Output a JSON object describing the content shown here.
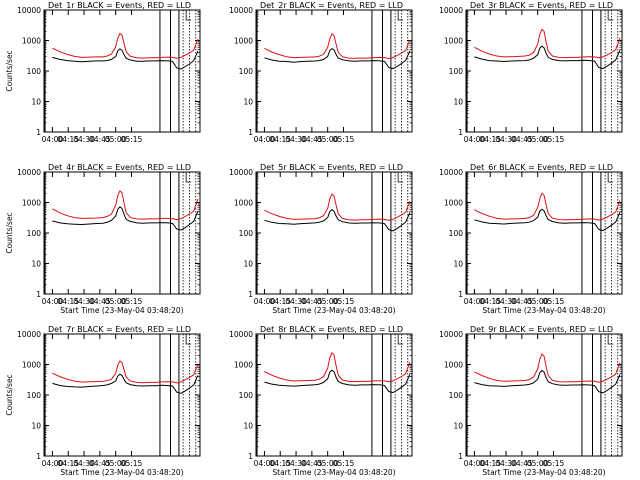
{
  "chart_data": [
    {
      "type": "line",
      "title": "Det_1r BLACK = Events, RED = LLD",
      "xlabel": "",
      "ylabel": "Counts/sec",
      "x_ticks": [
        "04:00",
        "04:15",
        "04:30",
        "04:45",
        "05:00",
        "05:15"
      ],
      "y_ticks": [
        "1",
        "10",
        "100",
        "1000",
        "10000"
      ],
      "ylog": true,
      "ylim": [
        1,
        10000
      ],
      "x_minutes": [
        0,
        7,
        14,
        21,
        28,
        35,
        42,
        48,
        52,
        56,
        60,
        62,
        64,
        66,
        68,
        70,
        74,
        80,
        86,
        92,
        98,
        104,
        110,
        114,
        118,
        122,
        126,
        130,
        134,
        138
      ],
      "series": [
        {
          "name": "Events",
          "color": "#000000",
          "values": [
            280,
            240,
            220,
            210,
            200,
            210,
            215,
            215,
            220,
            240,
            300,
            460,
            530,
            480,
            340,
            260,
            230,
            210,
            210,
            215,
            215,
            220,
            215,
            205,
            125,
            115,
            140,
            170,
            220,
            450
          ]
        },
        {
          "name": "LLD",
          "color": "#dd1111",
          "values": [
            560,
            430,
            350,
            300,
            280,
            285,
            290,
            290,
            310,
            360,
            620,
            1200,
            1700,
            1500,
            780,
            420,
            300,
            270,
            265,
            270,
            270,
            280,
            285,
            280,
            260,
            280,
            330,
            390,
            480,
            1100
          ]
        }
      ]
    },
    {
      "type": "line",
      "title": "Det_2r BLACK = Events, RED = LLD",
      "xlabel": "",
      "ylabel": "",
      "x_ticks": [
        "04:00",
        "04:15",
        "04:30",
        "04:45",
        "05:00",
        "05:15"
      ],
      "y_ticks": [
        "1",
        "10",
        "100",
        "1000",
        "10000"
      ],
      "ylog": true,
      "ylim": [
        1,
        10000
      ],
      "x_minutes": [
        0,
        7,
        14,
        21,
        28,
        35,
        42,
        48,
        52,
        56,
        60,
        62,
        64,
        66,
        68,
        70,
        74,
        80,
        86,
        92,
        98,
        104,
        110,
        114,
        118,
        122,
        126,
        130,
        134,
        138
      ],
      "series": [
        {
          "name": "Events",
          "color": "#000000",
          "values": [
            270,
            230,
            210,
            205,
            195,
            205,
            210,
            212,
            220,
            240,
            300,
            470,
            540,
            500,
            350,
            265,
            235,
            215,
            210,
            215,
            215,
            220,
            215,
            205,
            130,
            120,
            140,
            175,
            225,
            460
          ]
        },
        {
          "name": "LLD",
          "color": "#dd1111",
          "values": [
            550,
            420,
            345,
            295,
            275,
            280,
            285,
            290,
            305,
            350,
            600,
            1150,
            1650,
            1450,
            760,
            410,
            295,
            265,
            260,
            265,
            265,
            275,
            280,
            275,
            255,
            275,
            325,
            385,
            470,
            1050
          ]
        }
      ]
    },
    {
      "type": "line",
      "title": "Det_3r BLACK = Events, RED = LLD",
      "xlabel": "",
      "ylabel": "",
      "x_ticks": [
        "04:00",
        "04:15",
        "04:30",
        "04:45",
        "05:00",
        "05:15"
      ],
      "y_ticks": [
        "1",
        "10",
        "100",
        "1000",
        "10000"
      ],
      "ylog": true,
      "ylim": [
        1,
        10000
      ],
      "x_minutes": [
        0,
        7,
        14,
        21,
        28,
        35,
        42,
        48,
        52,
        56,
        60,
        62,
        64,
        66,
        68,
        70,
        74,
        80,
        86,
        92,
        98,
        104,
        110,
        114,
        118,
        122,
        126,
        130,
        134,
        138
      ],
      "series": [
        {
          "name": "Events",
          "color": "#000000",
          "values": [
            290,
            245,
            220,
            212,
            205,
            212,
            218,
            220,
            230,
            260,
            340,
            560,
            650,
            580,
            380,
            280,
            240,
            220,
            215,
            220,
            220,
            225,
            220,
            210,
            130,
            120,
            145,
            180,
            230,
            480
          ]
        },
        {
          "name": "LLD",
          "color": "#dd1111",
          "values": [
            600,
            450,
            360,
            310,
            290,
            295,
            300,
            310,
            330,
            400,
            760,
            1600,
            2300,
            2000,
            900,
            450,
            310,
            280,
            275,
            280,
            280,
            290,
            295,
            290,
            270,
            290,
            340,
            400,
            500,
            1200
          ]
        }
      ]
    },
    {
      "type": "line",
      "title": "Det_4r BLACK = Events, RED = LLD",
      "xlabel": "Start Time (23-May-04 03:48:20)",
      "ylabel": "Counts/sec",
      "x_ticks": [
        "04:00",
        "04:15",
        "04:30",
        "04:45",
        "05:00",
        "05:15"
      ],
      "y_ticks": [
        "1",
        "10",
        "100",
        "1000",
        "10000"
      ],
      "ylog": true,
      "ylim": [
        1,
        10000
      ],
      "x_minutes": [
        0,
        7,
        14,
        21,
        28,
        35,
        42,
        48,
        52,
        56,
        60,
        62,
        64,
        66,
        68,
        70,
        74,
        80,
        86,
        92,
        98,
        104,
        110,
        114,
        118,
        122,
        126,
        130,
        134,
        138
      ],
      "series": [
        {
          "name": "Events",
          "color": "#000000",
          "values": [
            250,
            215,
            200,
            195,
            190,
            198,
            205,
            210,
            225,
            260,
            360,
            600,
            720,
            640,
            400,
            280,
            240,
            215,
            210,
            215,
            215,
            220,
            215,
            205,
            135,
            125,
            150,
            190,
            240,
            520
          ]
        },
        {
          "name": "LLD",
          "color": "#dd1111",
          "values": [
            620,
            460,
            370,
            320,
            300,
            305,
            310,
            320,
            350,
            420,
            820,
            1700,
            2400,
            2100,
            950,
            460,
            320,
            290,
            285,
            290,
            290,
            300,
            300,
            295,
            275,
            295,
            350,
            420,
            520,
            1300
          ]
        }
      ]
    },
    {
      "type": "line",
      "title": "Det_5r BLACK = Events, RED = LLD",
      "xlabel": "Start Time (23-May-04 03:48:20)",
      "ylabel": "",
      "x_ticks": [
        "04:00",
        "04:15",
        "04:30",
        "04:45",
        "05:00",
        "05:15"
      ],
      "y_ticks": [
        "1",
        "10",
        "100",
        "1000",
        "10000"
      ],
      "ylog": true,
      "ylim": [
        1,
        10000
      ],
      "x_minutes": [
        0,
        7,
        14,
        21,
        28,
        35,
        42,
        48,
        52,
        56,
        60,
        62,
        64,
        66,
        68,
        70,
        74,
        80,
        86,
        92,
        98,
        104,
        110,
        114,
        118,
        122,
        126,
        130,
        134,
        138
      ],
      "series": [
        {
          "name": "Events",
          "color": "#000000",
          "values": [
            260,
            225,
            205,
            200,
            195,
            203,
            210,
            215,
            225,
            250,
            320,
            500,
            580,
            520,
            360,
            270,
            235,
            212,
            208,
            212,
            212,
            218,
            212,
            202,
            128,
            118,
            142,
            178,
            228,
            470
          ]
        },
        {
          "name": "LLD",
          "color": "#dd1111",
          "values": [
            560,
            430,
            350,
            300,
            280,
            285,
            290,
            295,
            315,
            370,
            650,
            1300,
            1900,
            1650,
            820,
            430,
            300,
            270,
            265,
            270,
            270,
            280,
            285,
            280,
            260,
            280,
            330,
            390,
            480,
            1100
          ]
        }
      ]
    },
    {
      "type": "line",
      "title": "Det_6r BLACK = Events, RED = LLD",
      "xlabel": "Start Time (23-May-04 03:48:20)",
      "ylabel": "",
      "x_ticks": [
        "04:00",
        "04:15",
        "04:30",
        "04:45",
        "05:00",
        "05:15"
      ],
      "y_ticks": [
        "1",
        "10",
        "100",
        "1000",
        "10000"
      ],
      "ylog": true,
      "ylim": [
        1,
        10000
      ],
      "x_minutes": [
        0,
        7,
        14,
        21,
        28,
        35,
        42,
        48,
        52,
        56,
        60,
        62,
        64,
        66,
        68,
        70,
        74,
        80,
        86,
        92,
        98,
        104,
        110,
        114,
        118,
        122,
        126,
        130,
        134,
        138
      ],
      "series": [
        {
          "name": "Events",
          "color": "#000000",
          "values": [
            270,
            232,
            210,
            204,
            198,
            206,
            212,
            216,
            226,
            255,
            330,
            520,
            600,
            540,
            370,
            275,
            238,
            215,
            210,
            215,
            215,
            220,
            215,
            205,
            130,
            120,
            145,
            180,
            230,
            480
          ]
        },
        {
          "name": "LLD",
          "color": "#dd1111",
          "values": [
            580,
            440,
            355,
            305,
            285,
            290,
            295,
            300,
            320,
            380,
            680,
            1350,
            2000,
            1750,
            840,
            440,
            305,
            275,
            270,
            275,
            275,
            285,
            290,
            285,
            265,
            285,
            335,
            395,
            490,
            1150
          ]
        }
      ]
    },
    {
      "type": "line",
      "title": "Det_7r BLACK = Events, RED = LLD",
      "xlabel": "Start Time (23-May-04 03:48:20)",
      "ylabel": "Counts/sec",
      "x_ticks": [
        "04:00",
        "04:15",
        "04:30",
        "04:45",
        "05:00",
        "05:15"
      ],
      "y_ticks": [
        "1",
        "10",
        "100",
        "1000",
        "10000"
      ],
      "ylog": true,
      "ylim": [
        1,
        10000
      ],
      "x_minutes": [
        0,
        7,
        14,
        21,
        28,
        35,
        42,
        48,
        52,
        56,
        60,
        62,
        64,
        66,
        68,
        70,
        74,
        80,
        86,
        92,
        98,
        104,
        110,
        114,
        118,
        122,
        126,
        130,
        134,
        138
      ],
      "series": [
        {
          "name": "Events",
          "color": "#000000",
          "values": [
            240,
            205,
            190,
            185,
            182,
            190,
            198,
            205,
            215,
            240,
            290,
            420,
            480,
            440,
            320,
            250,
            220,
            200,
            198,
            202,
            202,
            208,
            204,
            196,
            124,
            114,
            136,
            168,
            215,
            440
          ]
        },
        {
          "name": "LLD",
          "color": "#dd1111",
          "values": [
            520,
            400,
            330,
            285,
            265,
            270,
            275,
            280,
            295,
            330,
            520,
            950,
            1300,
            1150,
            680,
            390,
            285,
            258,
            252,
            258,
            258,
            268,
            272,
            268,
            250,
            268,
            318,
            372,
            460,
            1000
          ]
        }
      ]
    },
    {
      "type": "line",
      "title": "Det_8r BLACK = Events, RED = LLD",
      "xlabel": "Start Time (23-May-04 03:48:20)",
      "ylabel": "",
      "x_ticks": [
        "04:00",
        "04:15",
        "04:30",
        "04:45",
        "05:00",
        "05:15"
      ],
      "y_ticks": [
        "1",
        "10",
        "100",
        "1000",
        "10000"
      ],
      "ylog": true,
      "ylim": [
        1,
        10000
      ],
      "x_minutes": [
        0,
        7,
        14,
        21,
        28,
        35,
        42,
        48,
        52,
        56,
        60,
        62,
        64,
        66,
        68,
        70,
        74,
        80,
        86,
        92,
        98,
        104,
        110,
        114,
        118,
        122,
        126,
        130,
        134,
        138
      ],
      "series": [
        {
          "name": "Events",
          "color": "#000000",
          "values": [
            265,
            228,
            208,
            202,
            196,
            204,
            211,
            216,
            228,
            258,
            340,
            560,
            650,
            580,
            380,
            278,
            238,
            214,
            210,
            214,
            214,
            220,
            214,
            204,
            130,
            120,
            144,
            180,
            230,
            480
          ]
        },
        {
          "name": "LLD",
          "color": "#dd1111",
          "values": [
            590,
            445,
            360,
            310,
            288,
            293,
            298,
            305,
            330,
            400,
            760,
            1650,
            2400,
            2050,
            900,
            450,
            310,
            280,
            275,
            280,
            280,
            290,
            295,
            290,
            270,
            290,
            340,
            400,
            500,
            1200
          ]
        }
      ]
    },
    {
      "type": "line",
      "title": "Det_9r BLACK = Events, RED = LLD",
      "xlabel": "Start Time (23-May-04 03:48:20)",
      "ylabel": "",
      "x_ticks": [
        "04:00",
        "04:15",
        "04:30",
        "04:45",
        "05:00",
        "05:15"
      ],
      "y_ticks": [
        "1",
        "10",
        "100",
        "1000",
        "10000"
      ],
      "ylog": true,
      "ylim": [
        1,
        10000
      ],
      "x_minutes": [
        0,
        7,
        14,
        21,
        28,
        35,
        42,
        48,
        52,
        56,
        60,
        62,
        64,
        66,
        68,
        70,
        74,
        80,
        86,
        92,
        98,
        104,
        110,
        114,
        118,
        122,
        126,
        130,
        134,
        138
      ],
      "series": [
        {
          "name": "Events",
          "color": "#000000",
          "values": [
            255,
            220,
            202,
            197,
            192,
            200,
            207,
            212,
            222,
            250,
            330,
            540,
            640,
            570,
            370,
            272,
            234,
            212,
            208,
            212,
            212,
            218,
            212,
            202,
            128,
            118,
            142,
            178,
            228,
            470
          ]
        },
        {
          "name": "LLD",
          "color": "#dd1111",
          "values": [
            570,
            435,
            352,
            302,
            282,
            287,
            292,
            298,
            320,
            385,
            720,
            1500,
            2200,
            1900,
            860,
            440,
            302,
            272,
            268,
            272,
            272,
            282,
            288,
            282,
            262,
            282,
            332,
            392,
            485,
            1150
          ]
        }
      ]
    }
  ]
}
